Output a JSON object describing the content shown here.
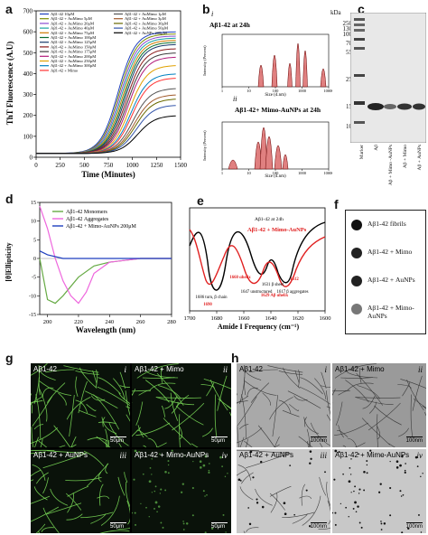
{
  "panels": {
    "a": {
      "label": "a",
      "ylabel": "ThT Fluorescence (A.U)",
      "xlabel": "Time (Minutes)",
      "legend": [
        {
          "name": "Aβ1-42 10μM",
          "color": "#1f3fbf"
        },
        {
          "name": "Aβ1-42 + AuMimo 5μM",
          "color": "#7a8a00"
        },
        {
          "name": "Aβ1-42 + AuMimo 20μM",
          "color": "#8a4bd1"
        },
        {
          "name": "Aβ1-42 + AuMimo 40μM",
          "color": "#1aa3a3"
        },
        {
          "name": "Aβ1-42 + AuMimo 75μM",
          "color": "#d07a00"
        },
        {
          "name": "Aβ1-42 + AuMimo 100μM",
          "color": "#0b6e2e"
        },
        {
          "name": "Aβ1-42 + AuMimo 125μM",
          "color": "#1a3a6b"
        },
        {
          "name": "Aβ1-42 + AuMimo 150μM",
          "color": "#8b1a1a"
        },
        {
          "name": "Aβ1-42 + AuMimo 175μM",
          "color": "#3c3c3c"
        },
        {
          "name": "Aβ1-42 + AuMimo 200μM",
          "color": "#b21a7a"
        },
        {
          "name": "Aβ1-42 + AuMimo 250μM",
          "color": "#e0a000"
        },
        {
          "name": "Aβ1-42 + AuMimo 300μM",
          "color": "#0080c0"
        },
        {
          "name": "Aβ1-42 + Mimo",
          "color": "#ff3333"
        },
        {
          "name": "Aβ1-42 + AuMimo 1μM",
          "color": "#555555"
        },
        {
          "name": "Aβ1-42 + AuMimo 3μM",
          "color": "#a05a2c"
        },
        {
          "name": "Aβ1-42 + AuMimo 30μM",
          "color": "#6a6a00"
        },
        {
          "name": "Aβ1-42 + AuMimo 50μM",
          "color": "#3355aa"
        },
        {
          "name": "Aβ1-42 + AuNPs 200μM",
          "color": "#000000"
        }
      ]
    },
    "b": {
      "label": "b",
      "sub_i": "i",
      "sub_ii": "ii",
      "title_i": "Aβ1-42 at 24h",
      "title_ii": "Aβ1-42+ Mimo-AuNPs at 24h",
      "ylabel": "Intensity (Percent)",
      "xlabel": "Size (d.nm)",
      "xticks": [
        "1",
        "10",
        "100",
        "1000",
        "10000"
      ]
    },
    "c": {
      "label": "c",
      "kda": "kDa",
      "markers": [
        "250",
        "130",
        "100",
        "70",
        "55",
        "25",
        "15",
        "10"
      ],
      "lanes": [
        "Marker",
        "Aβ",
        "Aβ + Mimo -AuNPs",
        "Aβ + Mimo",
        "Aβ + AuNPs"
      ]
    },
    "d": {
      "label": "d",
      "ylabel": "[θ]Ellipticity",
      "xlabel": "Wavelength (nm)",
      "legend": [
        {
          "name": "Aβ1-42 Monomers",
          "color": "#66aa44"
        },
        {
          "name": "Aβ1-42 Aggregates",
          "color": "#ee66dd"
        },
        {
          "name": "Aβ1-42 + Mimo-AuNPs 200μM",
          "color": "#1f3fbf"
        }
      ],
      "xticks": [
        "200",
        "220",
        "240",
        "260",
        "280"
      ]
    },
    "e": {
      "label": "e",
      "xlabel": "Amide I Frequency (cm⁻¹)",
      "legend_black": "Aβ1-42 at 24h",
      "legend_red": "Aβ1-42 + Mimo-AuNPs",
      "xticks": [
        "1700",
        "1680",
        "1660",
        "1640",
        "1620",
        "1600"
      ],
      "annotations_black": [
        "1686 turn, β chain",
        "1647 unstructured",
        "1631 β sheet",
        "1617 β aggregates"
      ],
      "annotations_red": [
        "1690",
        "1660 αhelix",
        "1629 Aβ αhelix",
        "1612"
      ]
    },
    "f": {
      "label": "f",
      "rows": [
        "Aβ1-42 fibrils",
        "Aβ1-42 + Mimo",
        "Aβ1-42 + AuNPs",
        "Aβ1-42 + Mimo-AuNPs"
      ]
    },
    "g": {
      "label": "g",
      "tiles": [
        {
          "title": "Aβ1-42",
          "num": "i",
          "scale": "50μm"
        },
        {
          "title": "Aβ1-42 + Mimo",
          "num": "ii",
          "scale": "50μm"
        },
        {
          "title": "Aβ1-42 + AuNPs",
          "num": "iii",
          "scale": "50μm"
        },
        {
          "title": "Aβ1-42 + Mimo-AuNPs",
          "num": "iv",
          "scale": "50μm"
        }
      ]
    },
    "h": {
      "label": "h",
      "tiles": [
        {
          "title": "Aβ1-42",
          "num": "i",
          "scale": "100nm"
        },
        {
          "title": "Aβ1-42 + Mimo",
          "num": "ii",
          "scale": "100nm"
        },
        {
          "title": "Aβ1-42 + AuNPs",
          "num": "iii",
          "scale": "100nm"
        },
        {
          "title": "Aβ1-42 + Mimo-AuNPs",
          "num": "iv",
          "scale": "100nm"
        }
      ]
    }
  },
  "chart_data": [
    {
      "panel": "a",
      "type": "line",
      "xlabel": "Time (Minutes)",
      "ylabel": "ThT Fluorescence (A.U)",
      "xlim": [
        0,
        1500
      ],
      "ylim": [
        0,
        700
      ],
      "xticks": [
        0,
        250,
        500,
        750,
        1000,
        1250,
        1500
      ],
      "yticks": [
        0,
        100,
        200,
        300,
        400,
        500,
        600,
        700
      ],
      "series_plateaus": [
        600,
        590,
        580,
        570,
        560,
        550,
        540,
        520,
        500,
        480,
        440,
        400,
        380,
        330,
        300,
        280,
        250,
        200
      ]
    },
    {
      "panel": "d",
      "type": "line",
      "xlabel": "Wavelength (nm)",
      "ylabel": "[θ]Ellipticity",
      "xlim": [
        195,
        280
      ],
      "ylim": [
        -15,
        15
      ],
      "xticks": [
        200,
        220,
        240,
        260,
        280
      ],
      "yticks": [
        -15,
        -10,
        -5,
        0,
        5,
        10,
        15
      ],
      "series": [
        {
          "name": "Aβ1-42 Monomers",
          "x": [
            195,
            200,
            205,
            210,
            220,
            230,
            240,
            260,
            280
          ],
          "y": [
            0,
            -11,
            -12,
            -10,
            -5,
            -2,
            -1,
            0,
            0
          ]
        },
        {
          "name": "Aβ1-42 Aggregates",
          "x": [
            195,
            200,
            205,
            210,
            215,
            220,
            225,
            230,
            240,
            260,
            280
          ],
          "y": [
            14,
            8,
            0,
            -6,
            -10,
            -12,
            -9,
            -4,
            -1,
            0,
            0
          ]
        },
        {
          "name": "Aβ1-42 + Mimo-AuNPs 200μM",
          "x": [
            195,
            200,
            210,
            220,
            230,
            240,
            260,
            280
          ],
          "y": [
            2,
            1,
            0,
            0,
            0,
            0,
            0,
            0
          ]
        }
      ]
    },
    {
      "panel": "e",
      "type": "line",
      "xlabel": "Amide I Frequency (cm⁻¹)",
      "xlim": [
        1700,
        1600
      ],
      "xticks": [
        1700,
        1680,
        1660,
        1640,
        1620,
        1600
      ]
    }
  ]
}
